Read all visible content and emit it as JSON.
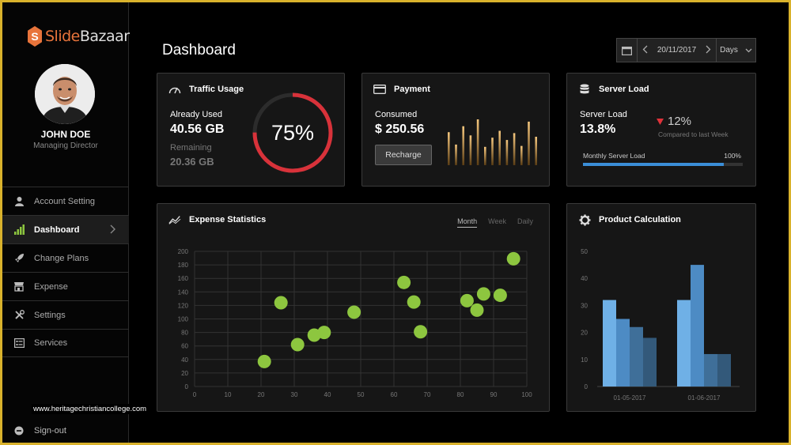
{
  "brand": {
    "name_part1": "Slide",
    "name_part2": "Bazaar",
    "logo_letter": "S",
    "accent": "#e8743b"
  },
  "watermark": "www.heritagechristiancollege.com",
  "user": {
    "name": "JOHN DOE",
    "role": "Managing Director"
  },
  "nav": [
    {
      "label": "Account Setting",
      "icon": "user-icon"
    },
    {
      "label": "Dashboard",
      "icon": "bar-chart-icon",
      "active": true
    },
    {
      "label": "Change Plans",
      "icon": "rocket-icon"
    },
    {
      "label": "Expense",
      "icon": "shop-icon"
    },
    {
      "label": "Settings",
      "icon": "tools-icon"
    },
    {
      "label": "Services",
      "icon": "list-icon"
    }
  ],
  "signout": "Sign-out",
  "header": {
    "title": "Dashboard",
    "date": "20/11/2017",
    "range": "Days"
  },
  "traffic": {
    "title": "Traffic Usage",
    "used_label": "Already Used",
    "used_value": "40.56 GB",
    "remaining_label": "Remaining",
    "remaining_value": "20.36 GB",
    "percent_label": "75%",
    "percent": 75,
    "ring_color": "#d8323a"
  },
  "payment": {
    "title": "Payment",
    "consumed_label": "Consumed",
    "consumed_value": "$ 250.56",
    "recharge_label": "Recharge",
    "bars": [
      0.72,
      0.45,
      0.85,
      0.65,
      1.0,
      0.4,
      0.6,
      0.75,
      0.55,
      0.7,
      0.42,
      0.95,
      0.62
    ]
  },
  "server": {
    "title": "Server Load",
    "load_label": "Server Load",
    "load_value": "13.8%",
    "change_value": "12%",
    "change_caption": "Compared to last Week",
    "monthly_label": "Monthly Server Load",
    "monthly_value": "100%",
    "progress": 0.88,
    "bar_color": "#3b8ed8"
  },
  "expense": {
    "title": "Expense Statistics",
    "tabs": [
      "Month",
      "Week",
      "Daily"
    ],
    "chart_data": {
      "type": "scatter",
      "xlim": [
        0,
        100
      ],
      "ylim": [
        0,
        200
      ],
      "x_ticks": [
        0,
        10,
        20,
        30,
        40,
        50,
        60,
        70,
        80,
        90,
        100
      ],
      "y_ticks": [
        0,
        20,
        40,
        60,
        80,
        100,
        120,
        140,
        160,
        180,
        200
      ],
      "points": [
        {
          "x": 21,
          "y": 37
        },
        {
          "x": 26,
          "y": 124
        },
        {
          "x": 31,
          "y": 62
        },
        {
          "x": 36,
          "y": 76
        },
        {
          "x": 39,
          "y": 80
        },
        {
          "x": 48,
          "y": 110
        },
        {
          "x": 63,
          "y": 154
        },
        {
          "x": 66,
          "y": 125
        },
        {
          "x": 68,
          "y": 81
        },
        {
          "x": 82,
          "y": 127
        },
        {
          "x": 85,
          "y": 113
        },
        {
          "x": 87,
          "y": 137
        },
        {
          "x": 92,
          "y": 135
        },
        {
          "x": 96,
          "y": 189
        }
      ],
      "point_color": "#8dc63f",
      "grid": true
    }
  },
  "product": {
    "title": "Product Calculation",
    "chart_data": {
      "type": "bar",
      "categories": [
        "01-05-2017",
        "01-06-2017"
      ],
      "ylim": [
        0,
        50
      ],
      "y_ticks": [
        0,
        10,
        20,
        30,
        40,
        50
      ],
      "groups": [
        [
          32,
          25,
          22,
          18
        ],
        [
          32,
          45,
          12,
          12
        ]
      ],
      "colors": [
        "#6fb0e6",
        "#4d8bc4",
        "#3f6f99",
        "#33597a"
      ]
    }
  }
}
